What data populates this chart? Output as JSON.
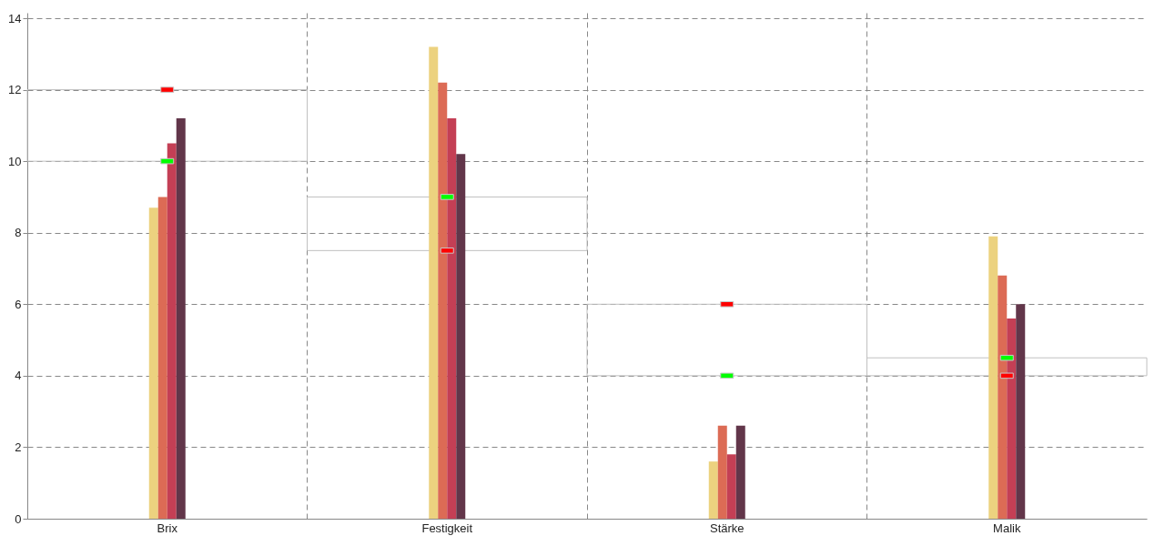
{
  "chart_data": {
    "type": "bar",
    "categories": [
      "Brix",
      "Festigkeit",
      "Stärke",
      "Malik"
    ],
    "ylim": [
      0,
      14
    ],
    "yticks": [
      0,
      2,
      4,
      6,
      8,
      10,
      12,
      14
    ],
    "grid": true,
    "series": [
      {
        "type": "bar",
        "color": "#c0c0c0",
        "base": [
          10,
          7.5,
          4,
          4
        ],
        "values": [
          2,
          1.5,
          2,
          0.5
        ]
      },
      {
        "color": "#ecd27f",
        "values": [
          8.7,
          13.2,
          1.6,
          7.9
        ]
      },
      {
        "color": "#dc6b55",
        "values": [
          9.0,
          12.2,
          2.6,
          6.8
        ]
      },
      {
        "color": "#c43f55",
        "values": [
          10.5,
          11.2,
          1.8,
          5.6
        ]
      },
      {
        "color": "#62364a",
        "values": [
          11.2,
          10.2,
          2.6,
          6.0
        ]
      },
      {
        "type": "scatter",
        "color": "#ff0000",
        "x": [
          "Brix",
          "Festigkeit",
          "Stärke",
          "Malik"
        ],
        "values": [
          12,
          7.5,
          6,
          4
        ]
      },
      {
        "type": "scatter",
        "color": "#00ff00",
        "x": [
          "Brix",
          "Festigkeit",
          "Stärke",
          "Malik"
        ],
        "values": [
          10,
          9,
          4,
          4.5
        ]
      }
    ]
  }
}
